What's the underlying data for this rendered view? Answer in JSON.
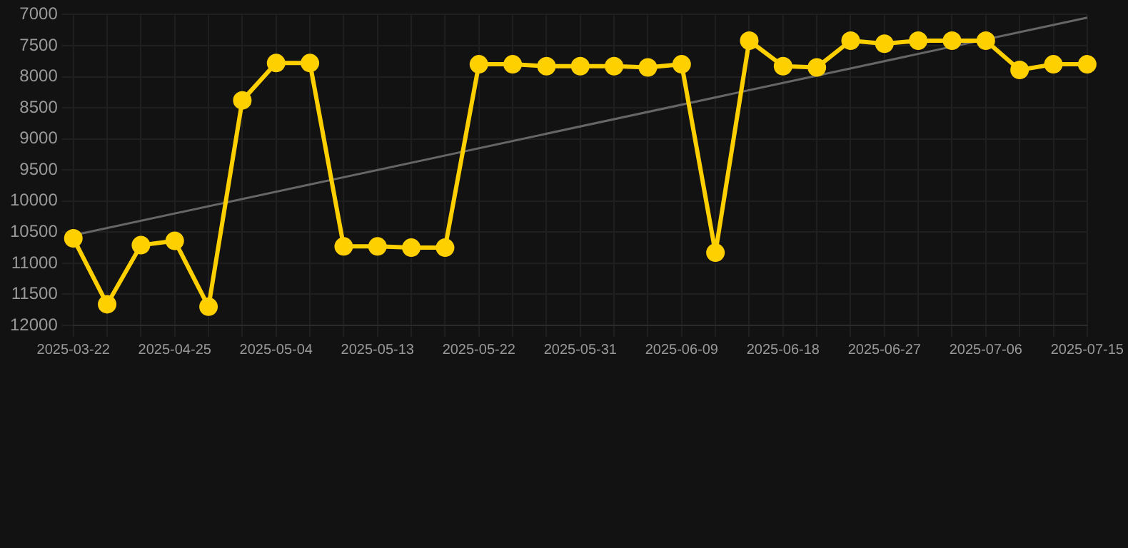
{
  "chart_data": {
    "type": "line",
    "categories": [
      "2025-03-22",
      null,
      null,
      "2025-04-25",
      null,
      null,
      "2025-05-04",
      null,
      null,
      "2025-05-13",
      null,
      null,
      "2025-05-22",
      null,
      null,
      "2025-05-31",
      null,
      null,
      "2025-06-09",
      null,
      null,
      "2025-06-18",
      null,
      null,
      "2025-06-27",
      null,
      null,
      "2025-07-06",
      null,
      null,
      "2025-07-15"
    ],
    "ylim": [
      12000,
      7000
    ],
    "yticks": [
      7000,
      7500,
      8000,
      8500,
      9000,
      9500,
      10000,
      10500,
      11000,
      11500,
      12000
    ],
    "grid": true,
    "marker": "circle",
    "series": [
      {
        "color": "#ffd000",
        "values": [
          10600,
          11660,
          10710,
          10640,
          11700,
          8380,
          7780,
          7780,
          10730,
          10730,
          10750,
          10750,
          7800,
          7800,
          7830,
          7830,
          7830,
          7850,
          7800,
          10830,
          7420,
          7830,
          7850,
          7420,
          7470,
          7420,
          7420,
          7420,
          7890,
          7800,
          7800
        ]
      },
      {
        "type": "line",
        "color": "#666666",
        "marker": "none",
        "values": [
          10550,
          null,
          null,
          null,
          null,
          null,
          null,
          null,
          null,
          null,
          null,
          null,
          null,
          null,
          null,
          null,
          null,
          null,
          null,
          null,
          null,
          null,
          null,
          null,
          null,
          null,
          null,
          null,
          null,
          null,
          7050
        ]
      }
    ]
  }
}
